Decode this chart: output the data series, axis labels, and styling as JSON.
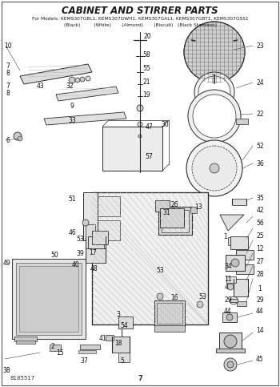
{
  "title": "CABINET AND STIRRER PARTS",
  "subtitle": "For Models: KEMS307GBL1, KEMS307GWH1, KEMS307GAL1, KEMS307GBT1, KEMS307GSS1",
  "subtitle2": "(Black)         (White)       (Almond)       (Biscuit)   (Black Stainless)",
  "page_number": "7",
  "part_number": "8185517",
  "bg_color": "#ffffff",
  "title_color": "#1a1a1a",
  "line_color": "#2a2a2a",
  "text_color": "#111111",
  "title_fontsize": 8.5,
  "subtitle_fontsize": 4.2,
  "label_fontsize": 5.5
}
